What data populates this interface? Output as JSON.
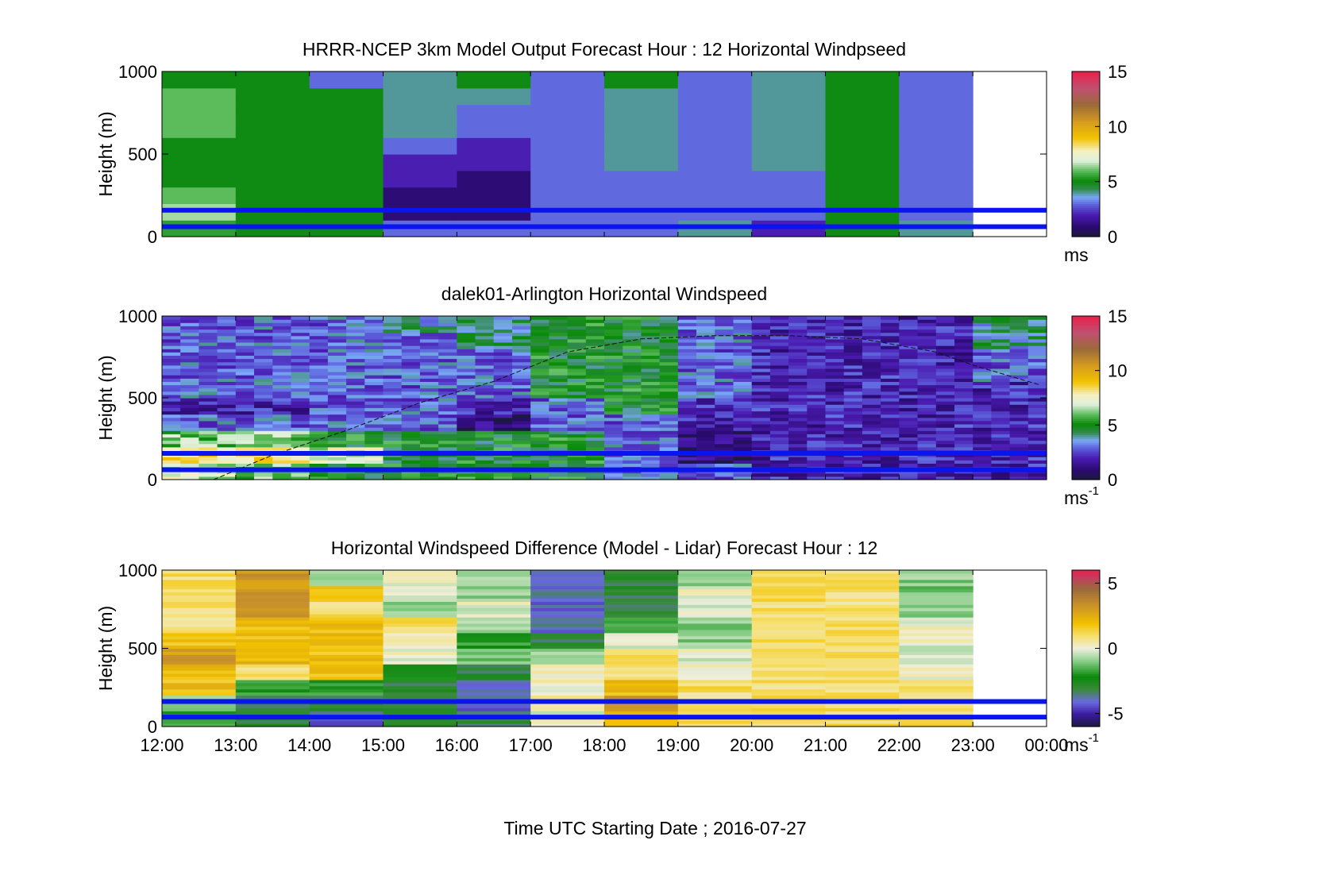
{
  "figure": {
    "xlabel": "Time UTC  Starting Date ; 2016-07-27",
    "x_ticks": [
      "12:00",
      "13:00",
      "14:00",
      "15:00",
      "16:00",
      "17:00",
      "18:00",
      "19:00",
      "20:00",
      "21:00",
      "22:00",
      "23:00",
      "00:00"
    ]
  },
  "panels": [
    {
      "title": "HRRR-NCEP 3km Model Output   Forecast Hour : 12 Horizontal Windpseed",
      "ylabel": "Height (m)",
      "y_ticks": [
        "0",
        "500",
        "1000"
      ],
      "colorbar_ticks": [
        "0",
        "5",
        "10",
        "15"
      ],
      "colorbar_unit": "ms",
      "colorbar_unit_sup": ""
    },
    {
      "title": "dalek01-Arlington  Horizontal Windspeed",
      "ylabel": "Height (m)",
      "y_ticks": [
        "0",
        "500",
        "1000"
      ],
      "colorbar_ticks": [
        "0",
        "5",
        "10",
        "15"
      ],
      "colorbar_unit": "ms",
      "colorbar_unit_sup": "-1"
    },
    {
      "title": "Horizontal Windspeed Difference (Model - Lidar) Forecast Hour : 12",
      "ylabel": "Height (m)",
      "y_ticks": [
        "0",
        "500",
        "1000"
      ],
      "colorbar_ticks": [
        "-5",
        "0",
        "5"
      ],
      "colorbar_unit": "ms",
      "colorbar_unit_sup": "-1"
    }
  ],
  "chart_data": [
    {
      "type": "heatmap",
      "title": "HRRR-NCEP 3km Model Output   Forecast Hour : 12 Horizontal Windpseed",
      "ylabel": "Height (m)",
      "xlim": [
        "12:00",
        "00:00"
      ],
      "ylim": [
        0,
        1000
      ],
      "clim": [
        0,
        15
      ],
      "colorbar_label": "ms",
      "x_hours": [
        12,
        13,
        14,
        15,
        16,
        17,
        18,
        19,
        20,
        21,
        22
      ],
      "heights": [
        50,
        150,
        250,
        350,
        450,
        550,
        650,
        750,
        850,
        950
      ],
      "values": [
        [
          5.5,
          5,
          5,
          3,
          3,
          3,
          3,
          4,
          2,
          5,
          4
        ],
        [
          6.5,
          5,
          5,
          1,
          1,
          3,
          3,
          3,
          3,
          5,
          3
        ],
        [
          6,
          5,
          5,
          1,
          1,
          3,
          3,
          3,
          3,
          5,
          3
        ],
        [
          5,
          5,
          5,
          2,
          1,
          3,
          3,
          3,
          3,
          5,
          3
        ],
        [
          5,
          5,
          5,
          2,
          2,
          3,
          4,
          3,
          4,
          5,
          3
        ],
        [
          5,
          5,
          5,
          3,
          2,
          3,
          4,
          3,
          4,
          5,
          3
        ],
        [
          6,
          5,
          5,
          4,
          3,
          3,
          4,
          3,
          4,
          5,
          3
        ],
        [
          6,
          5,
          5,
          4,
          3,
          3,
          4,
          3,
          4,
          5,
          3
        ],
        [
          6,
          5,
          5,
          4,
          4,
          3,
          4,
          3,
          4,
          5,
          3
        ],
        [
          5,
          5,
          3,
          4,
          5,
          3,
          5,
          3,
          4,
          5,
          3
        ]
      ],
      "reference_lines_m": [
        60,
        160
      ]
    },
    {
      "type": "heatmap",
      "title": "dalek01-Arlington  Horizontal Windspeed",
      "ylabel": "Height (m)",
      "xlim": [
        "12:00",
        "00:00"
      ],
      "ylim": [
        0,
        1000
      ],
      "clim": [
        0,
        15
      ],
      "colorbar_label": "ms-1",
      "x_hours": [
        12,
        13,
        14,
        15,
        16,
        17,
        18,
        19,
        20,
        21,
        22,
        23
      ],
      "heights": [
        50,
        150,
        250,
        350,
        450,
        550,
        650,
        750,
        850,
        950
      ],
      "values": [
        [
          7,
          6,
          5,
          5,
          5,
          5,
          3,
          3,
          2,
          2,
          2,
          2
        ],
        [
          8,
          8,
          7,
          5,
          5,
          5,
          3,
          1,
          2,
          2,
          2,
          2
        ],
        [
          6,
          6,
          5,
          5,
          5,
          5,
          3,
          1,
          2,
          2,
          2,
          2
        ],
        [
          3,
          3,
          3,
          3,
          1,
          3,
          3,
          2,
          2,
          2,
          2,
          2
        ],
        [
          2,
          2,
          3,
          3,
          2,
          3,
          5,
          2,
          2,
          2,
          2,
          2
        ],
        [
          3,
          3,
          3,
          3,
          3,
          5,
          5,
          3,
          2,
          2,
          2,
          2
        ],
        [
          3,
          3,
          3,
          3,
          3,
          5,
          5,
          3,
          2,
          2,
          2,
          3
        ],
        [
          3,
          3,
          3,
          3,
          3,
          5,
          5,
          3,
          2,
          2,
          2,
          3
        ],
        [
          3,
          3,
          3,
          3,
          4,
          5,
          5,
          3,
          2,
          2,
          2,
          4
        ],
        [
          3,
          3,
          3,
          4,
          4,
          5,
          5,
          3,
          2,
          2,
          2,
          4
        ]
      ],
      "dashed_curve_points": [
        [
          12.7,
          0
        ],
        [
          13.5,
          150
        ],
        [
          14.5,
          300
        ],
        [
          15.5,
          470
        ],
        [
          16.5,
          600
        ],
        [
          17.5,
          780
        ],
        [
          18.5,
          860
        ],
        [
          19.5,
          880
        ],
        [
          20.5,
          880
        ],
        [
          21.5,
          860
        ],
        [
          22.5,
          780
        ],
        [
          23.0,
          700
        ],
        [
          23.9,
          580
        ]
      ],
      "reference_lines_m": [
        60,
        160
      ]
    },
    {
      "type": "heatmap",
      "title": "Horizontal Windspeed Difference (Model - Lidar) Forecast Hour : 12",
      "ylabel": "Height (m)",
      "xlim": [
        "12:00",
        "00:00"
      ],
      "ylim": [
        0,
        1000
      ],
      "clim": [
        -6,
        6
      ],
      "colorbar_label": "ms-1",
      "x_hours": [
        12,
        13,
        14,
        15,
        16,
        17,
        18,
        19,
        20,
        21,
        22
      ],
      "heights": [
        50,
        150,
        250,
        350,
        450,
        550,
        650,
        750,
        850,
        950
      ],
      "values": [
        [
          -2,
          -3,
          -4,
          -3,
          -3,
          0,
          2,
          1,
          1,
          1,
          1
        ],
        [
          -1,
          -3,
          -3,
          -3,
          -4,
          1,
          3,
          1,
          1,
          1,
          1
        ],
        [
          2,
          -2,
          -2,
          -3,
          -4,
          0,
          2,
          1,
          1,
          1,
          1
        ],
        [
          2,
          1,
          2,
          -2,
          -3,
          0,
          1,
          0,
          1,
          1,
          0
        ],
        [
          3,
          2,
          2,
          0,
          -1,
          -1,
          1,
          0,
          1,
          1,
          0
        ],
        [
          2,
          2,
          2,
          0,
          -2,
          -3,
          0,
          -1,
          1,
          1,
          0
        ],
        [
          1,
          2,
          2,
          1,
          -1,
          -4,
          -2,
          -1,
          1,
          1,
          0
        ],
        [
          1,
          3,
          1,
          -1,
          0,
          -4,
          -3,
          0,
          1,
          1,
          -1
        ],
        [
          1,
          3,
          2,
          0,
          -1,
          -4,
          -3,
          0,
          1,
          1,
          -1
        ],
        [
          1,
          3,
          -1,
          0,
          -1,
          -4,
          -3,
          -1,
          1,
          1,
          -1
        ]
      ],
      "reference_lines_m": [
        60,
        160
      ]
    }
  ]
}
